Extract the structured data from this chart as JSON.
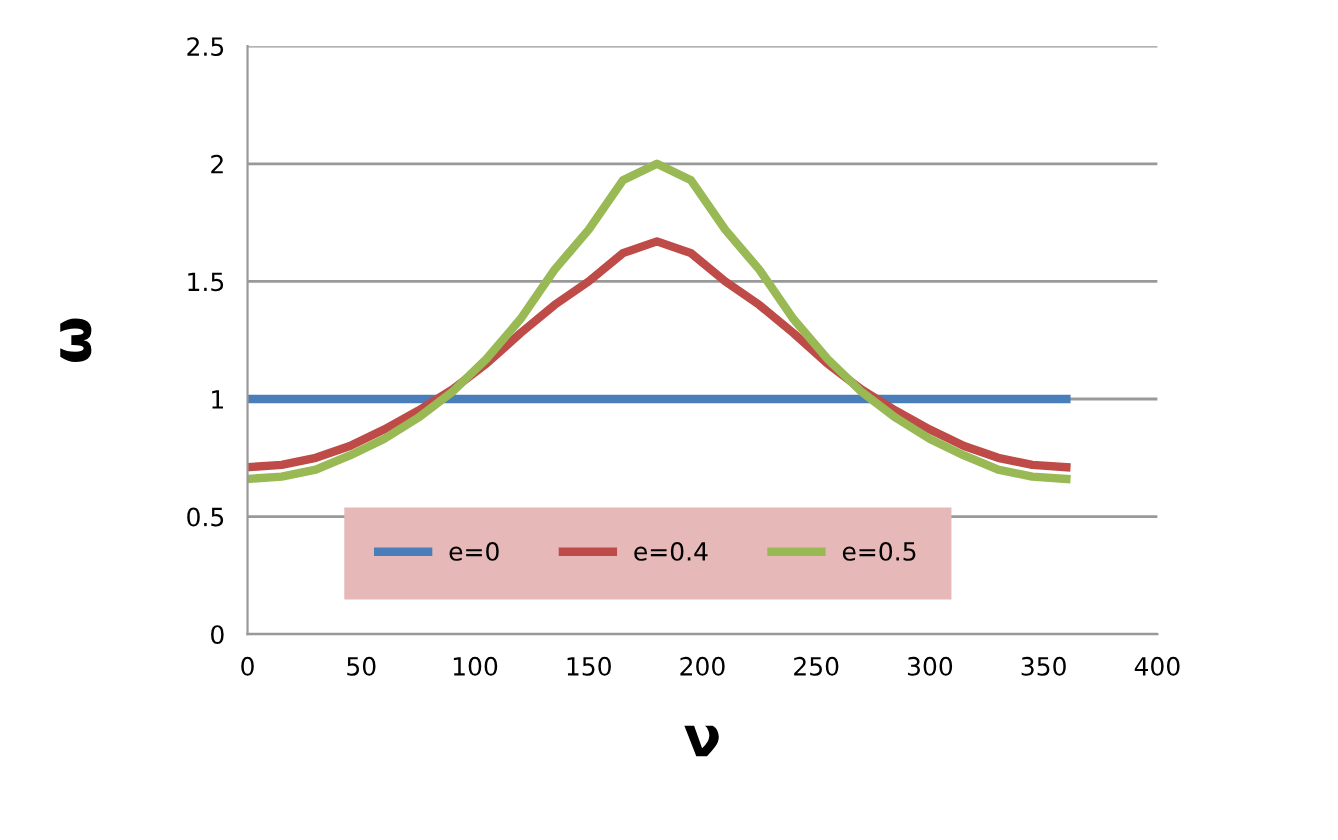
{
  "chart_data": {
    "type": "line",
    "xlabel": "ν",
    "ylabel": "ω",
    "x": [
      0,
      15,
      30,
      45,
      60,
      75,
      90,
      105,
      120,
      135,
      150,
      165,
      180,
      195,
      210,
      225,
      240,
      255,
      270,
      285,
      300,
      315,
      330,
      345,
      360
    ],
    "series": [
      {
        "name": "e=0",
        "color": "#4a7ebb",
        "values": [
          1,
          1,
          1,
          1,
          1,
          1,
          1,
          1,
          1,
          1,
          1,
          1,
          1,
          1,
          1,
          1,
          1,
          1,
          1,
          1,
          1,
          1,
          1,
          1,
          1
        ]
      },
      {
        "name": "e=0.4",
        "color": "#be4b48",
        "values": [
          0.71,
          0.72,
          0.75,
          0.8,
          0.87,
          0.95,
          1.04,
          1.15,
          1.28,
          1.4,
          1.5,
          1.62,
          1.67,
          1.62,
          1.5,
          1.4,
          1.28,
          1.15,
          1.04,
          0.95,
          0.87,
          0.8,
          0.75,
          0.72,
          0.71
        ]
      },
      {
        "name": "e=0.5",
        "color": "#98b954",
        "values": [
          0.66,
          0.67,
          0.7,
          0.76,
          0.83,
          0.92,
          1.03,
          1.17,
          1.34,
          1.55,
          1.72,
          1.93,
          2.0,
          1.93,
          1.72,
          1.55,
          1.34,
          1.17,
          1.03,
          0.92,
          0.83,
          0.76,
          0.7,
          0.67,
          0.66
        ]
      }
    ],
    "xlim": [
      0,
      400
    ],
    "xticks": [
      0,
      50,
      100,
      150,
      200,
      250,
      300,
      350,
      400
    ],
    "ylim": [
      0,
      2.5
    ],
    "yticks": [
      0,
      0.5,
      1,
      1.5,
      2,
      2.5
    ],
    "grid": "y",
    "legend": "bottom",
    "marker": "none",
    "line_style": "solid"
  }
}
